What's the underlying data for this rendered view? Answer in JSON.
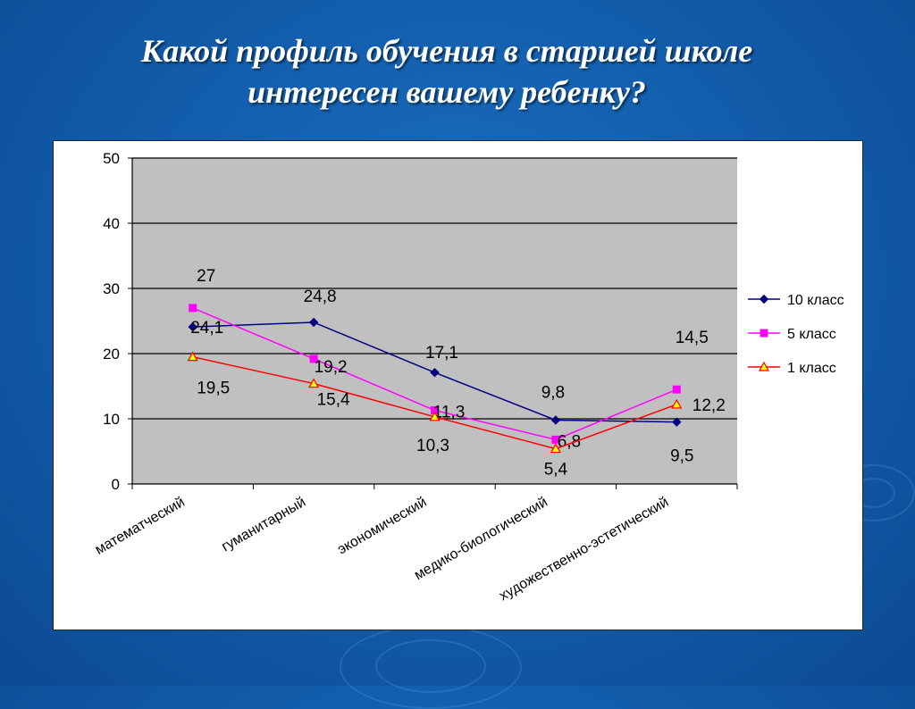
{
  "title": {
    "line1": "Какой профиль обучения в старшей школе",
    "line2": "интересен вашему ребенку?"
  },
  "colors": {
    "background": "#135fae",
    "plot_area": "#c0c0c0",
    "series_10": "#000080",
    "series_5": "#ff00ff",
    "series_1": "#ff0000",
    "series_1_marker_fill": "#ffff00"
  },
  "chart_data": {
    "type": "line",
    "categories": [
      "математческий",
      "гуманитарный",
      "экономический",
      "медико-биологический",
      "художественно-эстетический"
    ],
    "series": [
      {
        "name": "10 класс",
        "values": [
          24.1,
          24.8,
          17.1,
          9.8,
          9.5
        ],
        "labels": [
          "24,1",
          "24,8",
          "17,1",
          "9,8",
          "9,5"
        ],
        "marker": "diamond",
        "color": "#000080"
      },
      {
        "name": "5 класс",
        "values": [
          27,
          19.2,
          11.3,
          6.8,
          14.5
        ],
        "labels": [
          "27",
          "19,2",
          "11,3",
          "6,8",
          "14,5"
        ],
        "marker": "square",
        "color": "#ff00ff"
      },
      {
        "name": "1 класс",
        "values": [
          19.5,
          15.4,
          10.3,
          5.4,
          12.2
        ],
        "labels": [
          "19,5",
          "15,4",
          "10,3",
          "5,4",
          "12,2"
        ],
        "marker": "triangle",
        "color": "#ff0000"
      }
    ],
    "ylim": [
      0,
      50
    ],
    "yticks": [
      "0",
      "10",
      "20",
      "30",
      "40",
      "50"
    ],
    "grid": true,
    "legend": "right"
  }
}
